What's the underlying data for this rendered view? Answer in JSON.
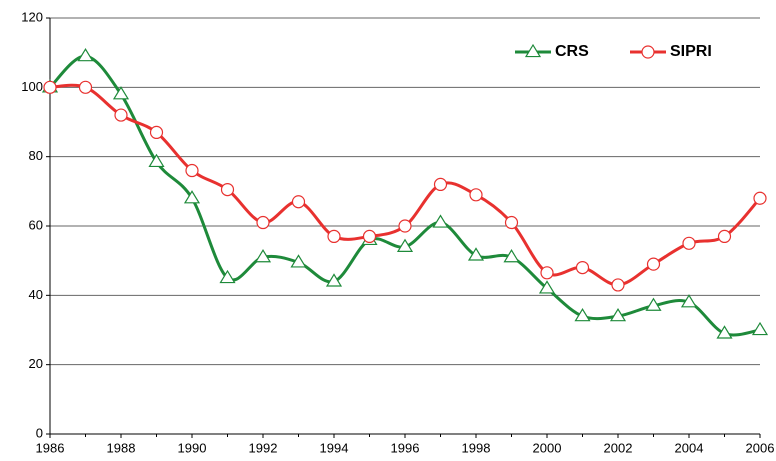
{
  "chart_data": {
    "type": "line",
    "x": [
      1986,
      1987,
      1988,
      1989,
      1990,
      1991,
      1992,
      1993,
      1994,
      1995,
      1996,
      1997,
      1998,
      1999,
      2000,
      2001,
      2002,
      2003,
      2004,
      2005,
      2006
    ],
    "series": [
      {
        "name": "CRS",
        "color": "#1e8a3a",
        "marker": "triangle",
        "values": [
          100,
          109,
          98,
          78.5,
          68,
          45,
          51,
          49.5,
          44,
          56,
          54,
          61,
          51.5,
          51,
          42,
          34,
          34,
          37,
          38,
          29,
          30
        ]
      },
      {
        "name": "SIPRI",
        "color": "#e8312f",
        "marker": "circle",
        "values": [
          100,
          100,
          92,
          87,
          76,
          70.5,
          61,
          67,
          57,
          57,
          60,
          72,
          69,
          61,
          46.5,
          48,
          43,
          49,
          55,
          57,
          68
        ]
      }
    ],
    "xlim": [
      1986,
      2006
    ],
    "xticks": [
      1986,
      1988,
      1990,
      1992,
      1994,
      1996,
      1998,
      2000,
      2002,
      2004,
      2006
    ],
    "ylim": [
      0,
      120
    ],
    "yticks": [
      0,
      20,
      40,
      60,
      80,
      100,
      120
    ],
    "grid": true,
    "legend": "upper right"
  }
}
